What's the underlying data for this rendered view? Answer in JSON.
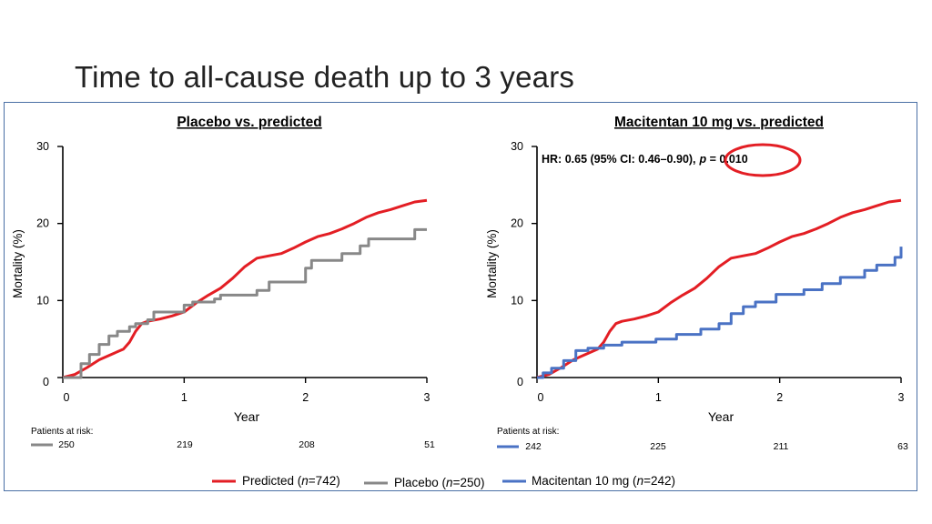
{
  "slide": {
    "title": "Time to all-cause death up to 3 years"
  },
  "colors": {
    "predicted": "#e31e24",
    "placebo": "#888888",
    "macitentan": "#4a72c4",
    "axis": "#000000",
    "highlight": "#e31e24"
  },
  "chart_data": [
    {
      "type": "line",
      "title": "Placebo vs. predicted",
      "xlabel": "Year",
      "ylabel": "Mortality (%)",
      "xlim": [
        0,
        3
      ],
      "ylim": [
        0,
        30
      ],
      "xticks": [
        "0",
        "1",
        "2",
        "3"
      ],
      "yticks": [
        "0",
        "10",
        "20",
        "30"
      ],
      "series": [
        {
          "name": "Predicted",
          "key": "predicted",
          "x": [
            0,
            0.1,
            0.2,
            0.3,
            0.4,
            0.5,
            0.55,
            0.6,
            0.65,
            0.7,
            0.8,
            0.9,
            1.0,
            1.1,
            1.2,
            1.3,
            1.4,
            1.5,
            1.6,
            1.7,
            1.8,
            1.9,
            2.0,
            2.1,
            2.2,
            2.3,
            2.4,
            2.5,
            2.6,
            2.7,
            2.8,
            2.9,
            3.0
          ],
          "y": [
            0,
            0.4,
            1.3,
            2.3,
            3.0,
            3.7,
            4.6,
            6.0,
            7.0,
            7.3,
            7.6,
            8.0,
            8.5,
            9.7,
            10.7,
            11.6,
            12.9,
            14.4,
            15.5,
            15.8,
            16.1,
            16.8,
            17.6,
            18.3,
            18.7,
            19.3,
            20.0,
            20.8,
            21.4,
            21.8,
            22.3,
            22.8,
            23.0
          ]
        },
        {
          "name": "Placebo",
          "key": "placebo",
          "step": true,
          "x": [
            0,
            0.15,
            0.22,
            0.3,
            0.38,
            0.45,
            0.55,
            0.6,
            0.7,
            0.75,
            0.95,
            1.0,
            1.07,
            1.25,
            1.3,
            1.6,
            1.7,
            1.9,
            2.0,
            2.05,
            2.3,
            2.45,
            2.52,
            2.65,
            2.9,
            3.0
          ],
          "y": [
            0,
            1.8,
            3.0,
            4.3,
            5.4,
            6.0,
            6.6,
            7.0,
            7.5,
            8.5,
            8.5,
            9.4,
            9.8,
            10.2,
            10.7,
            11.3,
            12.4,
            12.4,
            14.2,
            15.2,
            16.1,
            17.1,
            18.0,
            18.0,
            19.2,
            19.2
          ]
        }
      ],
      "at_risk": {
        "label": "Patients at risk:",
        "series": "placebo",
        "x": [
          0,
          1,
          2,
          3
        ],
        "values": [
          "250",
          "219",
          "208",
          "51"
        ]
      }
    },
    {
      "type": "line",
      "title": "Macitentan 10 mg vs. predicted",
      "xlabel": "Year",
      "ylabel": "Mortality (%)",
      "xlim": [
        0,
        3
      ],
      "ylim": [
        0,
        30
      ],
      "xticks": [
        "0",
        "1",
        "2",
        "3"
      ],
      "yticks": [
        "0",
        "10",
        "20",
        "30"
      ],
      "annotation": {
        "hr_text": "HR: 0.65 (95% CI: 0.46–0.90),",
        "p_symbol": "p",
        "p_value": " = 0.010"
      },
      "series": [
        {
          "name": "Predicted",
          "key": "predicted",
          "x": [
            0,
            0.1,
            0.2,
            0.3,
            0.4,
            0.5,
            0.55,
            0.6,
            0.65,
            0.7,
            0.8,
            0.9,
            1.0,
            1.1,
            1.2,
            1.3,
            1.4,
            1.5,
            1.6,
            1.7,
            1.8,
            1.9,
            2.0,
            2.1,
            2.2,
            2.3,
            2.4,
            2.5,
            2.6,
            2.7,
            2.8,
            2.9,
            3.0
          ],
          "y": [
            0,
            0.4,
            1.3,
            2.3,
            3.0,
            3.7,
            4.6,
            6.0,
            7.0,
            7.3,
            7.6,
            8.0,
            8.5,
            9.7,
            10.7,
            11.6,
            12.9,
            14.4,
            15.5,
            15.8,
            16.1,
            16.8,
            17.6,
            18.3,
            18.7,
            19.3,
            20.0,
            20.8,
            21.4,
            21.8,
            22.3,
            22.8,
            23.0
          ]
        },
        {
          "name": "Macitentan 10 mg",
          "key": "macitentan",
          "step": true,
          "x": [
            0,
            0.05,
            0.12,
            0.22,
            0.32,
            0.42,
            0.55,
            0.7,
            0.98,
            1.15,
            1.35,
            1.5,
            1.6,
            1.7,
            1.8,
            1.97,
            2.2,
            2.35,
            2.5,
            2.7,
            2.8,
            2.95,
            3.0
          ],
          "y": [
            0,
            0.6,
            1.2,
            2.2,
            3.5,
            3.8,
            4.2,
            4.6,
            5.0,
            5.6,
            6.3,
            7.0,
            8.3,
            9.2,
            9.8,
            10.8,
            11.4,
            12.2,
            13.0,
            13.9,
            14.6,
            15.6,
            17.0
          ]
        }
      ],
      "at_risk": {
        "label": "Patients at risk:",
        "series": "macitentan",
        "x": [
          0,
          1,
          2,
          3
        ],
        "values": [
          "242",
          "225",
          "211",
          "63"
        ]
      }
    }
  ],
  "legend": {
    "items": [
      {
        "key": "predicted",
        "label": "Predicted (",
        "n": "n",
        "rest": "=742)"
      },
      {
        "key": "placebo",
        "label": "Placebo (",
        "n": "n",
        "rest": "=250)"
      },
      {
        "key": "macitentan",
        "label": "Macitentan 10 mg (",
        "n": "n",
        "rest": "=242)"
      }
    ]
  }
}
